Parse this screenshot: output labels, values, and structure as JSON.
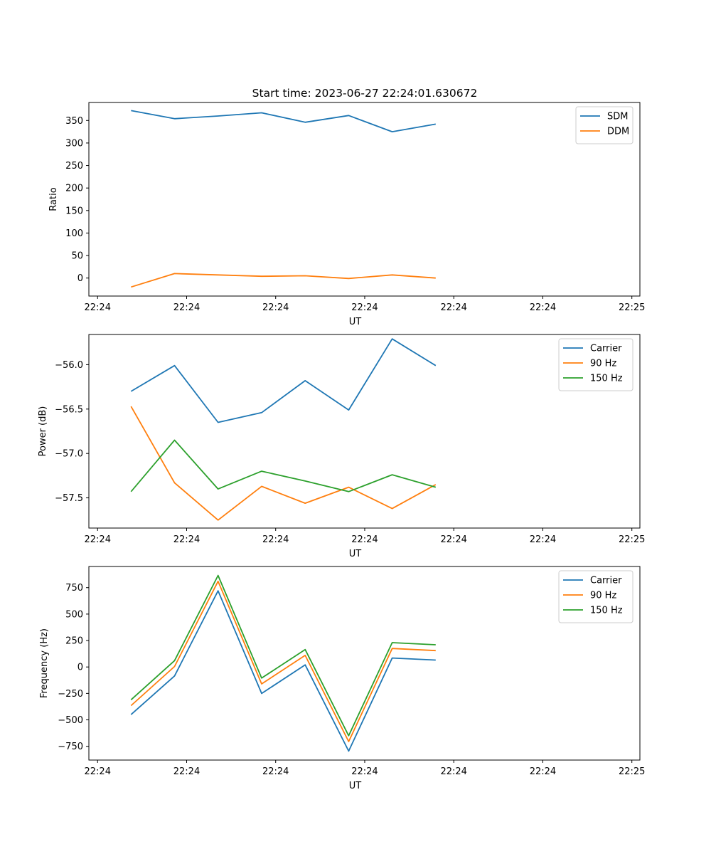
{
  "figure": {
    "title": "Start time: 2023-06-27 22:24:01.630672"
  },
  "chart_data": [
    {
      "type": "line",
      "title": "Start time: 2023-06-27 22:24:01.630672",
      "xlabel": "UT",
      "ylabel": "Ratio",
      "x_tick_labels": [
        "22:24",
        "22:24",
        "22:24",
        "22:24",
        "22:24",
        "22:24",
        "22:25"
      ],
      "y_ticks": [
        0,
        50,
        100,
        150,
        200,
        250,
        300,
        350
      ],
      "ylim": [
        -40,
        390
      ],
      "xlim": [
        -0.13,
        8.1
      ],
      "x": [
        0.5,
        1.15,
        1.8,
        2.45,
        3.1,
        3.75,
        4.4,
        5.05
      ],
      "grid": false,
      "legend_position": "top-right",
      "series": [
        {
          "name": "SDM",
          "color": "#1f77b4",
          "values": [
            372,
            354,
            360,
            367,
            346,
            361,
            325,
            342
          ]
        },
        {
          "name": "DDM",
          "color": "#ff7f0e",
          "values": [
            -20,
            10,
            7,
            4,
            5,
            -1,
            7,
            0
          ]
        }
      ]
    },
    {
      "type": "line",
      "xlabel": "UT",
      "ylabel": "Power (dB)",
      "x_tick_labels": [
        "22:24",
        "22:24",
        "22:24",
        "22:24",
        "22:24",
        "22:24",
        "22:25"
      ],
      "y_ticks": [
        -57.5,
        -57.0,
        -56.5,
        -56.0
      ],
      "y_tick_labels": [
        "−57.5",
        "−57.0",
        "−56.5",
        "−56.0"
      ],
      "ylim": [
        -57.84,
        -55.66
      ],
      "xlim": [
        -0.13,
        8.1
      ],
      "x": [
        0.5,
        1.15,
        1.8,
        2.45,
        3.1,
        3.75,
        4.4,
        5.05
      ],
      "grid": false,
      "legend_position": "top-right",
      "series": [
        {
          "name": "Carrier",
          "color": "#1f77b4",
          "values": [
            -56.3,
            -56.01,
            -56.65,
            -56.54,
            -56.18,
            -56.51,
            -55.71,
            -56.01
          ]
        },
        {
          "name": "90 Hz",
          "color": "#ff7f0e",
          "values": [
            -56.47,
            -57.33,
            -57.75,
            -57.37,
            -57.56,
            -57.38,
            -57.62,
            -57.35
          ]
        },
        {
          "name": "150 Hz",
          "color": "#2ca02c",
          "values": [
            -57.43,
            -56.85,
            -57.4,
            -57.2,
            -57.31,
            -57.43,
            -57.24,
            -57.38
          ]
        }
      ]
    },
    {
      "type": "line",
      "xlabel": "UT",
      "ylabel": "Frequency (Hz)",
      "x_tick_labels": [
        "22:24",
        "22:24",
        "22:24",
        "22:24",
        "22:24",
        "22:24",
        "22:25"
      ],
      "y_ticks": [
        -750,
        -500,
        -250,
        0,
        250,
        500,
        750
      ],
      "y_tick_labels": [
        "−750",
        "−500",
        "−250",
        "0",
        "250",
        "500",
        "750"
      ],
      "ylim": [
        -880,
        950
      ],
      "xlim": [
        -0.13,
        8.1
      ],
      "x": [
        0.5,
        1.15,
        1.8,
        2.45,
        3.1,
        3.75,
        4.4,
        5.05
      ],
      "grid": false,
      "legend_position": "top-right",
      "series": [
        {
          "name": "Carrier",
          "color": "#1f77b4",
          "values": [
            -450,
            -85,
            720,
            -250,
            20,
            -795,
            85,
            65
          ]
        },
        {
          "name": "90 Hz",
          "color": "#ff7f0e",
          "values": [
            -365,
            5,
            810,
            -160,
            110,
            -705,
            175,
            155
          ]
        },
        {
          "name": "150 Hz",
          "color": "#2ca02c",
          "values": [
            -310,
            60,
            865,
            -105,
            165,
            -650,
            230,
            210
          ]
        }
      ]
    }
  ]
}
